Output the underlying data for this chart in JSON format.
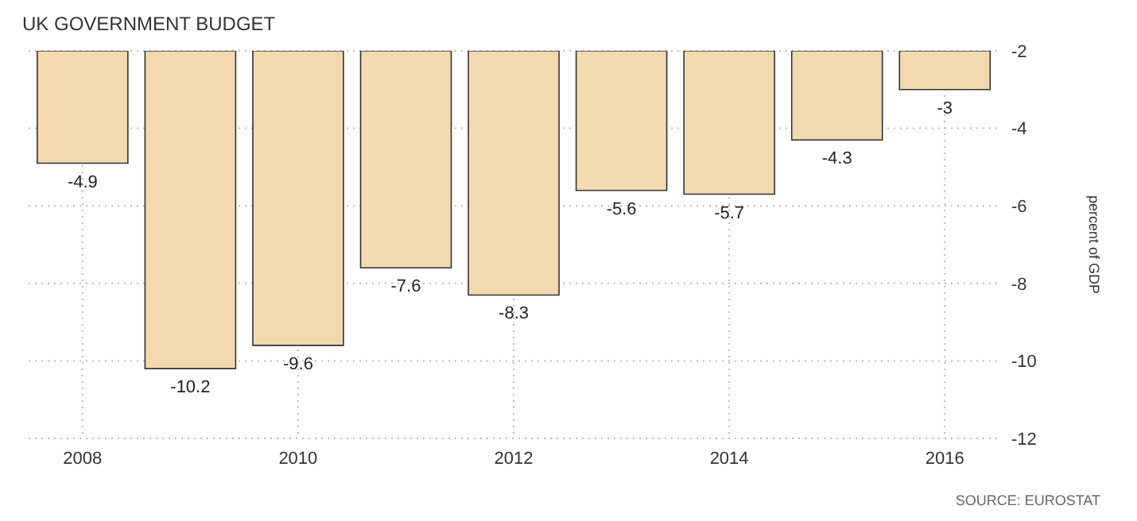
{
  "chart_data": {
    "type": "bar",
    "title": "UK GOVERNMENT BUDGET",
    "ylabel": "percent of GDP",
    "categories": [
      "2008",
      null,
      "2010",
      null,
      "2012",
      null,
      "2014",
      null,
      "2016"
    ],
    "values": [
      -4.9,
      -10.2,
      -9.6,
      -7.6,
      -8.3,
      -5.6,
      -5.7,
      -4.3,
      -3
    ],
    "color": "#f3d9b0",
    "ylim": [
      -12,
      -2
    ],
    "yticks": [
      -12,
      -10,
      -8,
      -6,
      -4,
      -2
    ],
    "grid": true,
    "data_labels": true,
    "annotations": [
      "SOURCE: EUROSTAT"
    ]
  }
}
